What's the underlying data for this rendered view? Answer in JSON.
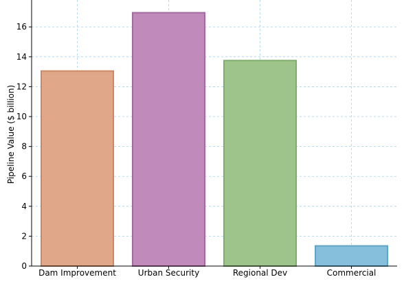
{
  "chart_data": {
    "type": "bar",
    "categories": [
      "Dam Improvement",
      "Urban Security",
      "Regional Dev",
      "Commercial"
    ],
    "values": [
      13.05,
      16.95,
      13.75,
      1.35
    ],
    "title": "",
    "xlabel": "",
    "ylabel": "Pipeline Value ($ billion)",
    "ylim": [
      0,
      17.8
    ],
    "yticks": [
      0,
      2,
      4,
      6,
      8,
      10,
      12,
      14,
      16
    ],
    "grid": true,
    "colors": {
      "fills": [
        "#e0a888",
        "#c08abb",
        "#9ec48c",
        "#86bfdb"
      ],
      "edges": [
        "#cc8863",
        "#a468a0",
        "#7ead6b",
        "#5fa3c5"
      ]
    }
  }
}
